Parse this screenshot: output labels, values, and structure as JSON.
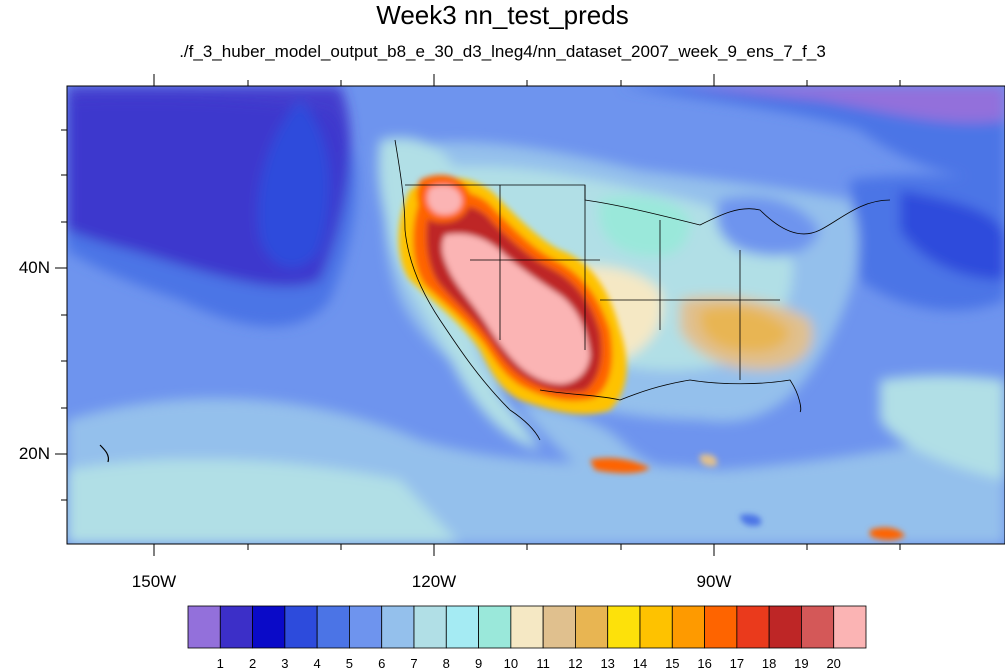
{
  "figure": {
    "title": "Week3 nn_test_preds",
    "subtitle": "./f_3_huber_model_output_b8_e_30_d3_lneg4/nn_dataset_2007_week_9_ens_7_f_3"
  },
  "axes": {
    "lon_labels": [
      "150W",
      "120W",
      "90W"
    ],
    "lat_labels": [
      "40N",
      "20N"
    ]
  },
  "colorbar": {
    "labels": [
      "1",
      "2",
      "3",
      "4",
      "5",
      "6",
      "7",
      "8",
      "9",
      "10",
      "11",
      "12",
      "13",
      "14",
      "15",
      "16",
      "17",
      "18",
      "19",
      "20"
    ],
    "colors": [
      "#9370db",
      "#3c2fc8",
      "#0a0ac8",
      "#2d4bdc",
      "#4b74e6",
      "#6e94ee",
      "#94c0ec",
      "#b1dfe6",
      "#a5ebf3",
      "#9ae8da",
      "#f5e8c4",
      "#e0c08e",
      "#e8b552",
      "#fde10a",
      "#fec200",
      "#fe9a00",
      "#fe6400",
      "#ea3a1c",
      "#be2626",
      "#d45858",
      "#fbb4b4"
    ]
  }
}
